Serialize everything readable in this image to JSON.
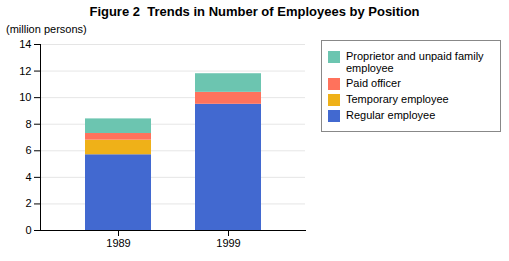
{
  "chart_data": {
    "type": "bar",
    "stacked": true,
    "title": "Figure 2  Trends in Number of Employees by Position",
    "ylabel": "(million persons)",
    "categories": [
      "1989",
      "1999"
    ],
    "series": [
      {
        "name": "Regular employee",
        "values": [
          5.7,
          9.5
        ]
      },
      {
        "name": "Temporary employee",
        "values": [
          1.1,
          0.0
        ]
      },
      {
        "name": "Paid officer",
        "values": [
          0.5,
          0.9
        ]
      },
      {
        "name": "Proprietor and unpaid family employee",
        "values": [
          1.1,
          1.4
        ]
      }
    ],
    "ylim": [
      0,
      14
    ],
    "yticks": [
      0,
      2,
      4,
      6,
      8,
      10,
      12,
      14
    ],
    "grid": true,
    "legend": "right"
  }
}
